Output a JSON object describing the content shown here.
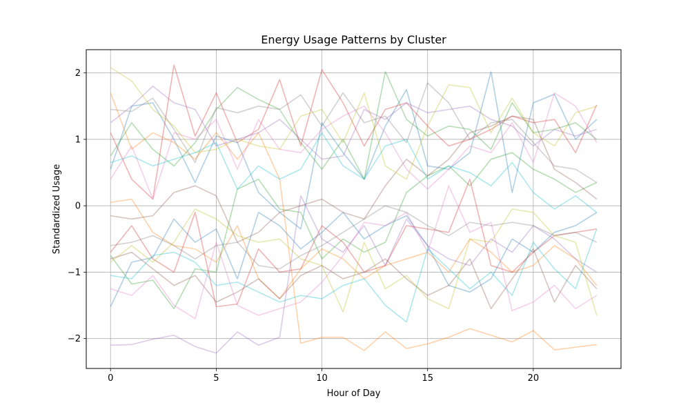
{
  "chart_data": {
    "type": "line",
    "title": "Energy Usage Patterns by Cluster",
    "xlabel": "Hour of Day",
    "ylabel": "Standardized Usage",
    "xlim": [
      -1.15,
      24.15
    ],
    "ylim": [
      -2.45,
      2.35
    ],
    "xticks": [
      0,
      5,
      10,
      15,
      20
    ],
    "yticks": [
      -2,
      -1,
      0,
      1,
      2
    ],
    "ytick_labels": [
      "−2",
      "−1",
      "0",
      "1",
      "2"
    ],
    "grid": true,
    "line_opacity": 0.35,
    "x": [
      0,
      1,
      2,
      3,
      4,
      5,
      6,
      7,
      8,
      9,
      10,
      11,
      12,
      13,
      14,
      15,
      16,
      17,
      18,
      19,
      20,
      21,
      22,
      23
    ],
    "series": [
      {
        "color": "#1f77b4",
        "values": [
          -1.52,
          -0.85,
          -0.78,
          -0.2,
          -0.55,
          -0.35,
          -1.1,
          -0.1,
          -0.3,
          -0.65,
          -0.4,
          -0.1,
          -0.5,
          -0.3,
          -0.15,
          -0.6,
          -1.2,
          -1.3,
          -1.1,
          -0.5,
          -0.7,
          -0.4,
          -0.3,
          -0.1
        ]
      },
      {
        "color": "#1f77b4",
        "values": [
          0.55,
          1.5,
          1.55,
          1.0,
          0.35,
          1.05,
          0.95,
          0.2,
          -0.1,
          -0.35,
          1.25,
          0.8,
          0.4,
          1.2,
          1.75,
          0.6,
          0.55,
          0.8,
          2.02,
          0.2,
          1.55,
          1.68,
          1.0,
          1.3
        ]
      },
      {
        "color": "#ff7f0e",
        "values": [
          1.7,
          0.85,
          1.1,
          0.95,
          0.7,
          1.1,
          0.7,
          1.1,
          0.4,
          -2.07,
          -1.98,
          -1.98,
          -2.18,
          -1.9,
          -2.15,
          -2.08,
          -1.98,
          -1.85,
          -1.95,
          -2.05,
          -1.88,
          -2.17,
          -2.13,
          -2.09
        ]
      },
      {
        "color": "#ff7f0e",
        "values": [
          0.05,
          0.1,
          -0.4,
          -0.6,
          -0.65,
          -0.85,
          -0.3,
          -1.1,
          -1.4,
          -0.95,
          -0.65,
          -0.8,
          -1.1,
          -0.9,
          -0.8,
          -0.7,
          -1.0,
          -0.5,
          -0.7,
          -1.0,
          -0.9,
          -0.6,
          -0.8,
          -1.2
        ]
      },
      {
        "color": "#2ca02c",
        "values": [
          0.75,
          1.25,
          0.85,
          0.6,
          0.95,
          1.45,
          1.78,
          1.6,
          1.45,
          0.95,
          0.55,
          1.0,
          0.4,
          2.02,
          1.3,
          1.05,
          1.2,
          1.15,
          0.85,
          1.55,
          1.1,
          1.15,
          1.25,
          1.0
        ]
      },
      {
        "color": "#2ca02c",
        "values": [
          -0.75,
          -1.18,
          -1.12,
          -1.55,
          -0.95,
          -1.0,
          0.25,
          0.4,
          -0.05,
          -0.1,
          -0.8,
          -0.5,
          -0.7,
          -0.55,
          0.2,
          0.45,
          0.6,
          0.3,
          0.7,
          0.8,
          0.55,
          0.4,
          0.2,
          0.35
        ]
      },
      {
        "color": "#d62728",
        "values": [
          1.1,
          0.4,
          0.1,
          2.12,
          1.05,
          1.7,
          0.95,
          1.15,
          1.9,
          0.9,
          2.05,
          1.55,
          0.9,
          1.45,
          1.55,
          1.2,
          0.9,
          1.0,
          1.15,
          1.35,
          1.25,
          1.3,
          0.8,
          1.52
        ]
      },
      {
        "color": "#d62728",
        "values": [
          -0.7,
          -0.3,
          -0.8,
          -1.0,
          -0.1,
          -1.52,
          -1.48,
          -0.65,
          -1.0,
          -0.95,
          -0.3,
          -0.55,
          -1.0,
          -0.9,
          -0.3,
          -0.35,
          -0.4,
          0.4,
          -0.9,
          -1.0,
          -0.7,
          -0.45,
          -0.4,
          -0.35
        ]
      },
      {
        "color": "#9467bd",
        "values": [
          -2.1,
          -2.09,
          -2.01,
          -1.95,
          -2.12,
          -2.22,
          -1.9,
          -2.1,
          -1.98,
          0.15,
          -0.5,
          -0.7,
          -0.3,
          -0.9,
          -0.2,
          -0.6,
          -0.8,
          -0.9,
          -0.5,
          -0.7,
          -0.3,
          -0.5,
          -0.8,
          -1.0
        ]
      },
      {
        "color": "#9467bd",
        "values": [
          1.25,
          1.5,
          1.8,
          1.55,
          1.45,
          0.9,
          1.0,
          1.1,
          1.3,
          1.0,
          0.7,
          0.75,
          1.45,
          1.3,
          1.55,
          1.4,
          1.45,
          1.5,
          1.3,
          1.2,
          0.9,
          1.15,
          1.05,
          1.15
        ]
      },
      {
        "color": "#8c564b",
        "values": [
          -0.15,
          -0.2,
          -0.15,
          0.2,
          0.3,
          0.15,
          -0.55,
          -0.4,
          -0.1,
          0.0,
          0.1,
          -0.1,
          -0.2,
          0.3,
          0.7,
          0.45,
          0.7,
          1.1,
          1.2,
          1.35,
          1.3,
          0.55,
          0.35,
          0.1
        ]
      },
      {
        "color": "#8c564b",
        "values": [
          -0.8,
          -0.7,
          -0.95,
          -1.2,
          -1.05,
          -1.45,
          -1.3,
          -1.1,
          -1.4,
          -1.05,
          -0.9,
          -1.1,
          -1.0,
          -0.8,
          -1.1,
          -1.35,
          -1.2,
          -0.8,
          -1.55,
          -1.1,
          -0.65,
          -1.45,
          -0.9,
          -1.25
        ]
      },
      {
        "color": "#e377c2",
        "values": [
          0.4,
          0.9,
          0.1,
          1.1,
          1.0,
          1.3,
          0.55,
          1.3,
          0.85,
          0.8,
          1.15,
          1.35,
          1.5,
          1.1,
          0.55,
          0.25,
          0.55,
          0.9,
          0.8,
          1.25,
          0.65,
          1.7,
          1.5,
          0.95
        ]
      },
      {
        "color": "#e377c2",
        "values": [
          -1.25,
          -1.35,
          -1.05,
          -1.5,
          -1.7,
          -0.55,
          -1.5,
          -1.65,
          -1.55,
          -1.45,
          -1.15,
          -0.75,
          -0.25,
          -0.3,
          -0.1,
          -0.7,
          0.3,
          -0.4,
          -0.25,
          -1.58,
          -1.45,
          -1.2,
          -1.55,
          -1.35
        ]
      },
      {
        "color": "#7f7f7f",
        "values": [
          1.45,
          1.42,
          1.62,
          1.15,
          0.65,
          1.48,
          1.4,
          1.5,
          1.45,
          1.67,
          1.2,
          1.7,
          1.25,
          1.35,
          0.95,
          1.85,
          1.55,
          1.0,
          1.25,
          1.3,
          0.95,
          0.6,
          0.55,
          0.35
        ]
      },
      {
        "color": "#7f7f7f",
        "values": [
          -0.6,
          -0.55,
          -0.45,
          -0.6,
          -0.8,
          -0.6,
          -0.55,
          -0.9,
          -0.95,
          -0.75,
          -0.6,
          -0.4,
          -0.2,
          0.0,
          -0.1,
          -0.3,
          -0.45,
          -0.25,
          -0.3,
          -0.25,
          -0.3,
          -0.45,
          -0.4,
          -0.55
        ]
      },
      {
        "color": "#bcbd22",
        "values": [
          2.08,
          1.88,
          1.45,
          1.2,
          0.8,
          0.85,
          1.0,
          0.9,
          0.85,
          1.35,
          1.45,
          0.95,
          1.7,
          0.6,
          0.4,
          1.2,
          1.82,
          1.78,
          1.1,
          1.62,
          1.1,
          0.9,
          1.4,
          1.5
        ]
      },
      {
        "color": "#bcbd22",
        "values": [
          -0.85,
          -0.6,
          -0.85,
          -0.55,
          -0.05,
          -0.2,
          -0.45,
          -0.55,
          -0.5,
          -0.8,
          -0.9,
          -1.6,
          -0.55,
          -1.25,
          -1.05,
          -1.4,
          -1.55,
          -0.5,
          -0.55,
          -0.05,
          -0.1,
          -0.45,
          -0.55,
          -1.65
        ]
      },
      {
        "color": "#17becf",
        "values": [
          0.65,
          0.75,
          0.6,
          0.7,
          0.8,
          0.95,
          0.25,
          0.6,
          0.4,
          0.55,
          1.1,
          0.6,
          0.4,
          0.9,
          1.0,
          0.4,
          0.6,
          0.5,
          0.3,
          0.65,
          0.2,
          -0.05,
          0.15,
          -0.1
        ]
      },
      {
        "color": "#17becf",
        "values": [
          -1.05,
          -1.1,
          -0.75,
          -0.7,
          -0.85,
          -1.2,
          -1.15,
          -1.3,
          -1.45,
          -1.35,
          -1.4,
          -1.2,
          -1.1,
          -1.5,
          -1.75,
          -0.65,
          -0.95,
          -1.25,
          -1.0,
          -1.35,
          -0.55,
          -0.95,
          -1.25,
          -0.35
        ]
      }
    ]
  }
}
